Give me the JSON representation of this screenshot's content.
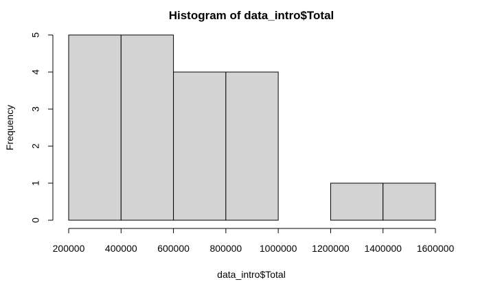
{
  "chart_data": {
    "type": "bar",
    "title": "Histogram of data_intro$Total",
    "xlabel": "data_intro$Total",
    "ylabel": "Frequency",
    "bins": [
      {
        "start": 200000,
        "end": 400000,
        "count": 5
      },
      {
        "start": 400000,
        "end": 600000,
        "count": 5
      },
      {
        "start": 600000,
        "end": 800000,
        "count": 4
      },
      {
        "start": 800000,
        "end": 1000000,
        "count": 4
      },
      {
        "start": 1000000,
        "end": 1200000,
        "count": 0
      },
      {
        "start": 1200000,
        "end": 1400000,
        "count": 1
      },
      {
        "start": 1400000,
        "end": 1600000,
        "count": 1
      }
    ],
    "categories": [
      "200000-400000",
      "400000-600000",
      "600000-800000",
      "800000-1000000",
      "1000000-1200000",
      "1200000-1400000",
      "1400000-1600000"
    ],
    "values": [
      5,
      5,
      4,
      4,
      0,
      1,
      1
    ],
    "xlim": [
      200000,
      1600000
    ],
    "ylim": [
      0,
      5
    ],
    "x_ticks": [
      200000,
      400000,
      600000,
      800000,
      1000000,
      1200000,
      1400000,
      1600000
    ],
    "x_tick_labels": [
      "200000",
      "400000",
      "600000",
      "800000",
      "1000000",
      "1200000",
      "1400000",
      "1600000"
    ],
    "y_ticks": [
      0,
      1,
      2,
      3,
      4,
      5
    ],
    "y_tick_labels": [
      "0",
      "1",
      "2",
      "3",
      "4",
      "5"
    ],
    "grid": false,
    "bar_fill": "#d3d3d3",
    "bar_stroke": "#000000"
  }
}
